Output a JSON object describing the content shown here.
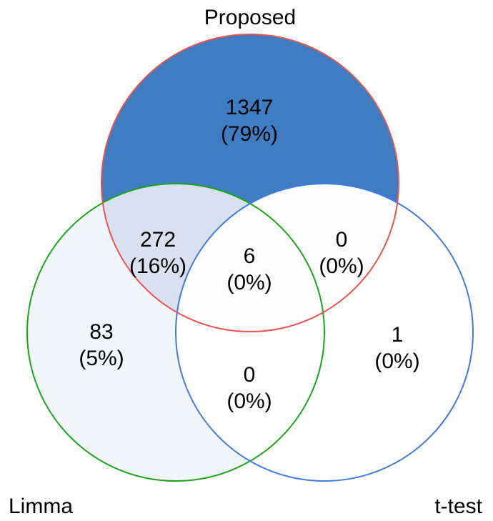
{
  "sets": {
    "proposed": {
      "label": "Proposed",
      "stroke": "#e8544f"
    },
    "limma": {
      "label": "Limma",
      "stroke": "#1aa51a"
    },
    "ttest": {
      "label": "t-test",
      "stroke": "#3f7be0"
    }
  },
  "regions": {
    "proposed_only": {
      "count": "1347",
      "percent": "(79%)",
      "fill": "#3f7cc1"
    },
    "proposed_limma": {
      "count": "272",
      "percent": "(16%)",
      "fill": "#d9e1f1"
    },
    "all_three": {
      "count": "6",
      "percent": "(0%)",
      "fill": "#fdfdfd"
    },
    "proposed_ttest": {
      "count": "0",
      "percent": "(0%)",
      "fill": "#fdfdfd"
    },
    "limma_only": {
      "count": "83",
      "percent": "(5%)",
      "fill": "#f2f5fa"
    },
    "limma_ttest": {
      "count": "0",
      "percent": "(0%)",
      "fill": "#ffffff"
    },
    "ttest_only": {
      "count": "1",
      "percent": "(0%)",
      "fill": "#ffffff"
    }
  }
}
